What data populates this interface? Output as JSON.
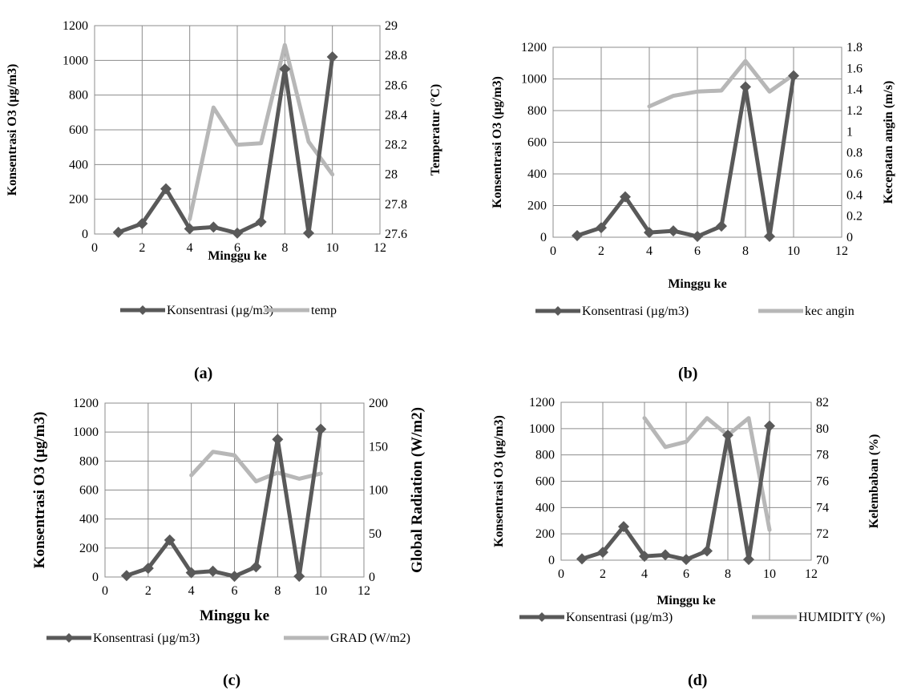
{
  "chart_data": [
    {
      "type": "line",
      "panel_label": "(a)",
      "xlabel": "Minggu ke",
      "ylabel": "Konsentrasi O3 (µg/m3)",
      "y2label": "Temperatur (°C)",
      "xlim": [
        0,
        12
      ],
      "x_ticks": [
        0,
        2,
        4,
        6,
        8,
        10,
        12
      ],
      "ylim": [
        0,
        1200
      ],
      "y_ticks": [
        0,
        200,
        400,
        600,
        800,
        1000,
        1200
      ],
      "y2lim": [
        27.6,
        29
      ],
      "y2_ticks": [
        "27.6",
        "27.8",
        "28",
        "28.2",
        "28.4",
        "28.6",
        "28.8",
        "29"
      ],
      "grid": true,
      "legend_position": "bottom",
      "series": [
        {
          "name": "Konsentrasi (µg/m3)",
          "axis": "left",
          "color": "#595959",
          "marker": "diamond",
          "x": [
            1,
            2,
            3,
            4,
            5,
            6,
            7,
            8,
            9,
            10
          ],
          "values": [
            10,
            60,
            260,
            30,
            40,
            5,
            70,
            950,
            5,
            1020
          ]
        },
        {
          "name": "temp",
          "axis": "right",
          "color": "#b7b7b7",
          "marker": "none",
          "x": [
            4,
            5,
            6,
            7,
            8,
            9,
            10
          ],
          "values": [
            27.7,
            28.45,
            28.2,
            28.21,
            28.87,
            28.22,
            28.0
          ]
        }
      ]
    },
    {
      "type": "line",
      "panel_label": "(b)",
      "xlabel": "Minggu ke",
      "ylabel": "Konsentrasi O3 (µg/m3)",
      "y2label": "Kecepatan angin (m/s)",
      "xlim": [
        0,
        12
      ],
      "x_ticks": [
        0,
        2,
        4,
        6,
        8,
        10,
        12
      ],
      "ylim": [
        0,
        1200
      ],
      "y_ticks": [
        0,
        200,
        400,
        600,
        800,
        1000,
        1200
      ],
      "y2lim": [
        0,
        1.8
      ],
      "y2_ticks": [
        "0",
        "0.2",
        "0.4",
        "0.6",
        "0.8",
        "1",
        "1.2",
        "1.4",
        "1.6",
        "1.8"
      ],
      "grid": true,
      "legend_position": "bottom",
      "series": [
        {
          "name": "Konsentrasi (µg/m3)",
          "axis": "left",
          "color": "#595959",
          "marker": "diamond",
          "x": [
            1,
            2,
            3,
            4,
            5,
            6,
            7,
            8,
            9,
            10
          ],
          "values": [
            10,
            60,
            255,
            30,
            40,
            5,
            70,
            950,
            5,
            1020
          ]
        },
        {
          "name": "kec angin",
          "axis": "right",
          "color": "#b7b7b7",
          "marker": "none",
          "x": [
            4,
            5,
            6,
            7,
            8,
            9,
            10
          ],
          "values": [
            1.24,
            1.34,
            1.38,
            1.39,
            1.67,
            1.38,
            1.54
          ]
        }
      ]
    },
    {
      "type": "line",
      "panel_label": "(c)",
      "xlabel": "Minggu ke",
      "ylabel": "Konsentrasi  O3 (µg/m3)",
      "y2label": "Global Radiation (W/m2)",
      "xlim": [
        0,
        12
      ],
      "x_ticks": [
        0,
        2,
        4,
        6,
        8,
        10,
        12
      ],
      "ylim": [
        0,
        1200
      ],
      "y_ticks": [
        0,
        200,
        400,
        600,
        800,
        1000,
        1200
      ],
      "y2lim": [
        0,
        200
      ],
      "y2_ticks": [
        "0",
        "50",
        "100",
        "150",
        "200"
      ],
      "grid": true,
      "legend_position": "bottom",
      "series": [
        {
          "name": "Konsentrasi (µg/m3)",
          "axis": "left",
          "color": "#595959",
          "marker": "diamond",
          "x": [
            1,
            2,
            3,
            4,
            5,
            6,
            7,
            8,
            9,
            10
          ],
          "values": [
            10,
            60,
            255,
            30,
            40,
            5,
            70,
            950,
            5,
            1020
          ]
        },
        {
          "name": "GRAD (W/m2)",
          "axis": "right",
          "color": "#b7b7b7",
          "marker": "none",
          "x": [
            4,
            5,
            6,
            7,
            8,
            9,
            10
          ],
          "values": [
            117,
            144,
            140,
            110,
            120,
            113,
            119
          ]
        }
      ]
    },
    {
      "type": "line",
      "panel_label": "(d)",
      "xlabel": "Minggu ke",
      "ylabel": "Konsentrasi O3 (µg/m3)",
      "y2label": "Kelembaban (%)",
      "xlim": [
        0,
        12
      ],
      "x_ticks": [
        0,
        2,
        4,
        6,
        8,
        10,
        12
      ],
      "ylim": [
        0,
        1200
      ],
      "y_ticks": [
        0,
        200,
        400,
        600,
        800,
        1000,
        1200
      ],
      "y2lim": [
        70,
        82
      ],
      "y2_ticks": [
        "70",
        "72",
        "74",
        "76",
        "78",
        "80",
        "82"
      ],
      "grid": true,
      "legend_position": "bottom",
      "series": [
        {
          "name": "Konsentrasi (µg/m3)",
          "axis": "left",
          "color": "#595959",
          "marker": "diamond",
          "x": [
            1,
            2,
            3,
            4,
            5,
            6,
            7,
            8,
            9,
            10
          ],
          "values": [
            10,
            60,
            255,
            30,
            40,
            5,
            70,
            950,
            5,
            1020
          ]
        },
        {
          "name": "HUMIDITY (%)",
          "axis": "right",
          "color": "#b7b7b7",
          "marker": "none",
          "x": [
            4,
            5,
            6,
            7,
            8,
            9,
            10
          ],
          "values": [
            80.8,
            78.6,
            79.0,
            80.8,
            79.5,
            80.8,
            72.3
          ]
        }
      ]
    }
  ]
}
